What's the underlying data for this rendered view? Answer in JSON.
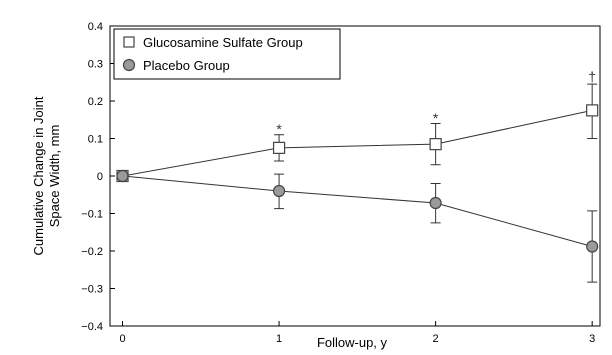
{
  "chart_data": {
    "type": "line",
    "title": "",
    "xlabel": "Follow-up, y",
    "ylabel_lines": [
      "Cumulative Change in Joint",
      "Space Width, mm"
    ],
    "x": [
      0,
      1,
      2,
      3
    ],
    "xticks": [
      0,
      1,
      2,
      3
    ],
    "xlim": [
      -0.08,
      3.05
    ],
    "ylim": [
      -0.4,
      0.4
    ],
    "yticks": [
      -0.4,
      -0.3,
      -0.2,
      -0.1,
      0,
      0.1,
      0.2,
      0.3,
      0.4
    ],
    "ytick_labels": [
      "−0.4",
      "−0.3",
      "−0.2",
      "−0.1",
      "0",
      "0.1",
      "0.2",
      "0.3",
      "0.4"
    ],
    "grid": false,
    "legend_position": "top-left",
    "series": [
      {
        "name": "Glucosamine Sulfate Group",
        "marker": "square",
        "fill": "#ffffff",
        "stroke": "#444444",
        "values": [
          0,
          0.075,
          0.085,
          0.175
        ],
        "error_upper": [
          0,
          0.11,
          0.14,
          0.245
        ],
        "error_lower": [
          0,
          0.04,
          0.03,
          0.1
        ]
      },
      {
        "name": "Placebo Group",
        "marker": "circle",
        "fill": "#9a9a9a",
        "stroke": "#444444",
        "values": [
          0,
          -0.04,
          -0.072,
          -0.188
        ],
        "error_upper": [
          0,
          0.005,
          -0.02,
          -0.093
        ],
        "error_lower": [
          0,
          -0.087,
          -0.125,
          -0.283
        ]
      }
    ],
    "annotations": [
      {
        "text": "*",
        "x": 1,
        "y": 0.125
      },
      {
        "text": "*",
        "x": 2,
        "y": 0.155
      },
      {
        "text": "†",
        "x": 3,
        "y": 0.265
      }
    ]
  }
}
